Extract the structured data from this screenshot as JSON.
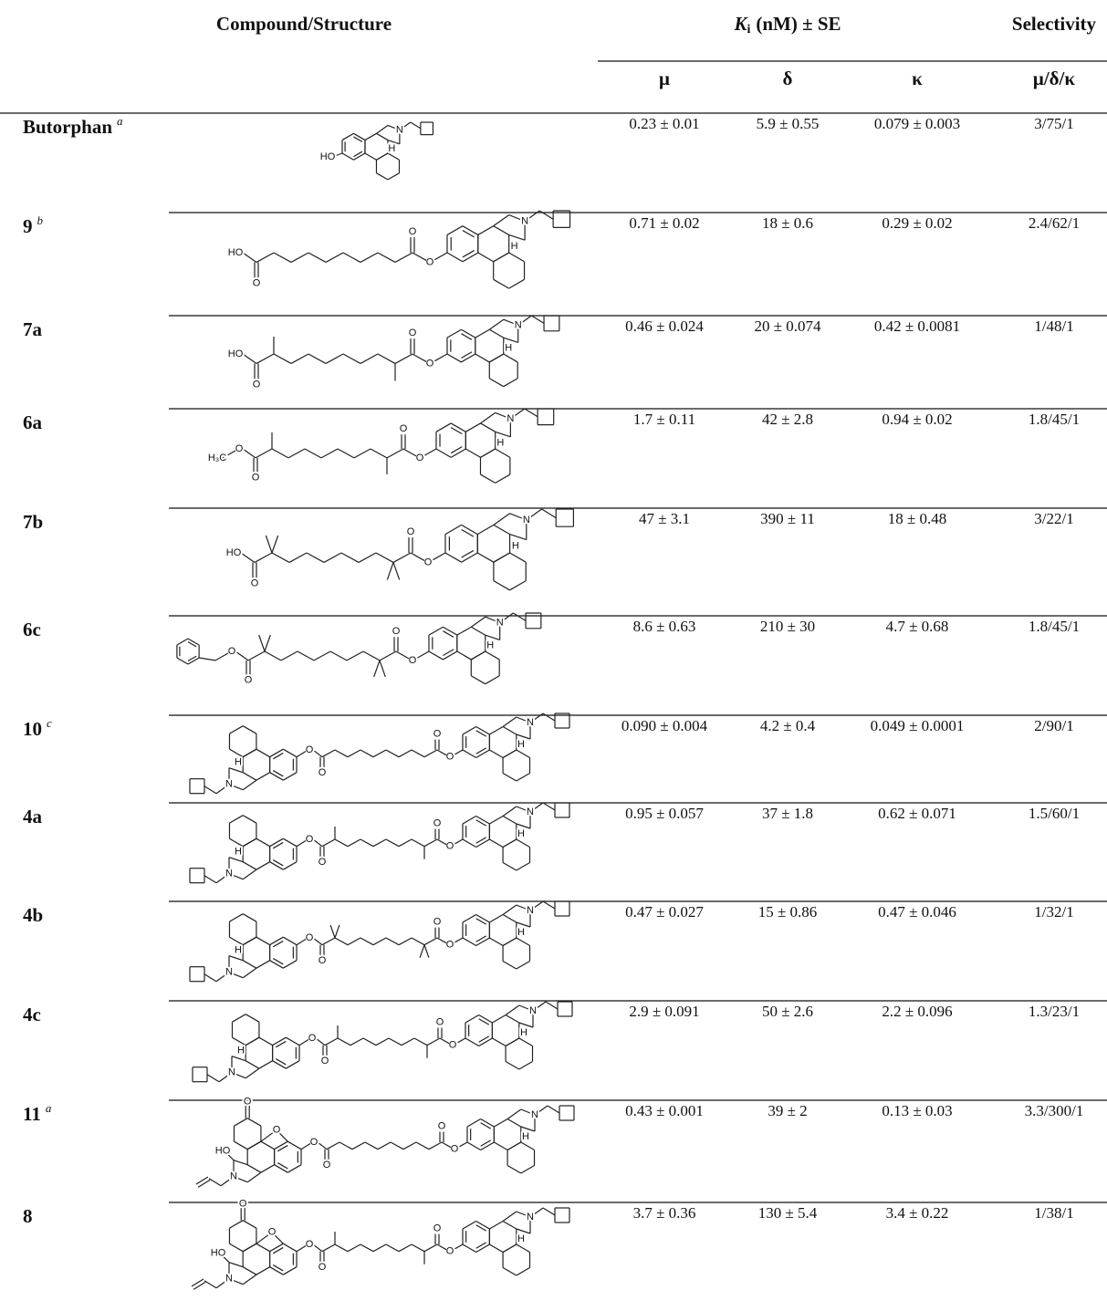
{
  "header": {
    "compound": "Compound/Structure",
    "ki_symbol": "K",
    "ki_subscript": "i",
    "ki_rest": "(nM) ± SE",
    "selectivity": "Selectivity",
    "mu": "μ",
    "delta": "δ",
    "kappa": "κ",
    "ratio": "μ/δ/κ"
  },
  "rows": [
    {
      "compound": "Butorphan",
      "note": "a",
      "mu": "0.23 ± 0.01",
      "delta": "5.9 ± 0.55",
      "kappa": "0.079 ± 0.003",
      "selectivity": "3/75/1",
      "atoms": [
        "N",
        "H",
        "HO"
      ]
    },
    {
      "compound": "9",
      "note": "b",
      "mu": "0.71 ± 0.02",
      "delta": "18 ± 0.6",
      "kappa": "0.29 ± 0.02",
      "selectivity": "2.4/62/1",
      "atoms": [
        "N",
        "H",
        "O",
        "O",
        "O",
        "HO"
      ]
    },
    {
      "compound": "7a",
      "mu": "0.46 ± 0.024",
      "delta": "20 ± 0.074",
      "kappa": "0.42 ± 0.0081",
      "selectivity": "1/48/1",
      "atoms": [
        "N",
        "H",
        "O",
        "O",
        "O",
        "HO"
      ]
    },
    {
      "compound": "6a",
      "mu": "1.7 ± 0.11",
      "delta": "42 ± 2.8",
      "kappa": "0.94 ± 0.02",
      "selectivity": "1.8/45/1",
      "atoms": [
        "N",
        "H",
        "O",
        "O",
        "O",
        "O",
        "H₃C"
      ]
    },
    {
      "compound": "7b",
      "mu": "47 ± 3.1",
      "delta": "390 ± 11",
      "kappa": "18 ± 0.48",
      "selectivity": "3/22/1",
      "atoms": [
        "N",
        "H",
        "O",
        "O",
        "O",
        "HO"
      ]
    },
    {
      "compound": "6c",
      "mu": "8.6 ± 0.63",
      "delta": "210 ± 30",
      "kappa": "4.7 ± 0.68",
      "selectivity": "1.8/45/1",
      "atoms": [
        "N",
        "H",
        "O",
        "O",
        "O",
        "O"
      ]
    },
    {
      "compound": "10",
      "note": "c",
      "mu": "0.090 ± 0.004",
      "delta": "4.2 ± 0.4",
      "kappa": "0.049 ± 0.0001",
      "selectivity": "2/90/1",
      "atoms": [
        "N",
        "H",
        "O",
        "O",
        "O",
        "O",
        "N",
        "H"
      ]
    },
    {
      "compound": "4a",
      "mu": "0.95 ± 0.057",
      "delta": "37 ± 1.8",
      "kappa": "0.62 ± 0.071",
      "selectivity": "1.5/60/1",
      "atoms": [
        "N",
        "H",
        "O",
        "O",
        "O",
        "O",
        "N",
        "H"
      ]
    },
    {
      "compound": "4b",
      "mu": "0.47 ± 0.027",
      "delta": "15 ± 0.86",
      "kappa": "0.47 ± 0.046",
      "selectivity": "1/32/1",
      "atoms": [
        "N",
        "H",
        "O",
        "O",
        "O",
        "O",
        "N",
        "H"
      ]
    },
    {
      "compound": "4c",
      "mu": "2.9 ± 0.091",
      "delta": "50 ± 2.6",
      "kappa": "2.2 ± 0.096",
      "selectivity": "1.3/23/1",
      "atoms": [
        "N",
        "H",
        "O",
        "O",
        "O",
        "O",
        "N",
        "H"
      ]
    },
    {
      "compound": "11",
      "note": "a",
      "mu": "0.43 ± 0.001",
      "delta": "39 ± 2",
      "kappa": "0.13 ± 0.03",
      "selectivity": "3.3/300/1",
      "atoms": [
        "N",
        "H",
        "O",
        "O",
        "O",
        "O",
        "N",
        "HO",
        "O",
        "O"
      ]
    },
    {
      "compound": "8",
      "mu": "3.7 ± 0.36",
      "delta": "130 ± 5.4",
      "kappa": "3.4 ± 0.22",
      "selectivity": "1/38/1",
      "atoms": [
        "N",
        "H",
        "O",
        "O",
        "O",
        "O",
        "N",
        "HO",
        "O",
        "O"
      ]
    }
  ]
}
